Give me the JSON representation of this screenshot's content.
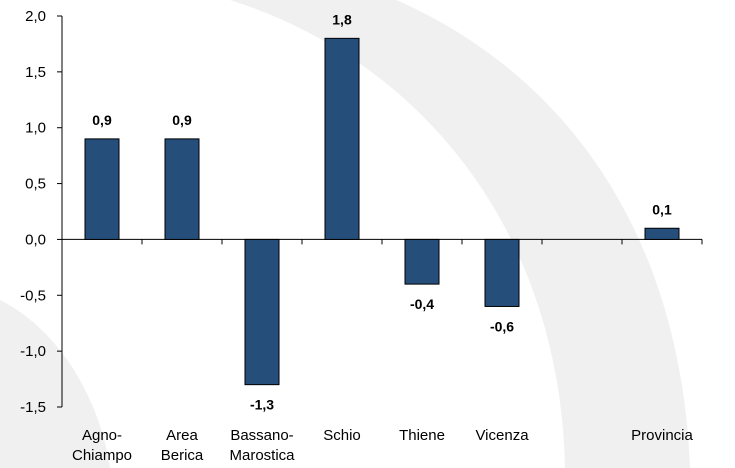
{
  "chart_data": {
    "type": "bar",
    "categories": [
      [
        "Agno-",
        "Chiampo"
      ],
      [
        "Area",
        "Berica"
      ],
      [
        "Bassano-",
        "Marostica"
      ],
      [
        "Schio"
      ],
      [
        "Thiene"
      ],
      [
        "Vicenza"
      ],
      [
        ""
      ],
      [
        "Provincia"
      ]
    ],
    "values": [
      0.9,
      0.9,
      -1.3,
      1.8,
      -0.4,
      -0.6,
      null,
      0.1
    ],
    "value_labels": [
      "0,9",
      "0,9",
      "-1,3",
      "1,8",
      "-0,4",
      "-0,6",
      "",
      "0,1"
    ],
    "ylim": [
      -1.5,
      2.0
    ],
    "yticks": [
      2.0,
      1.5,
      1.0,
      0.5,
      0.0,
      -0.5,
      -1.0,
      -1.5
    ],
    "ytick_labels": [
      "2,0",
      "1,5",
      "1,0",
      "0,5",
      "0,0",
      "-0,5",
      "-1,0",
      "-1,5"
    ],
    "title": "",
    "xlabel": "",
    "ylabel": "",
    "grid": false,
    "bar_color": "#254e7a"
  }
}
